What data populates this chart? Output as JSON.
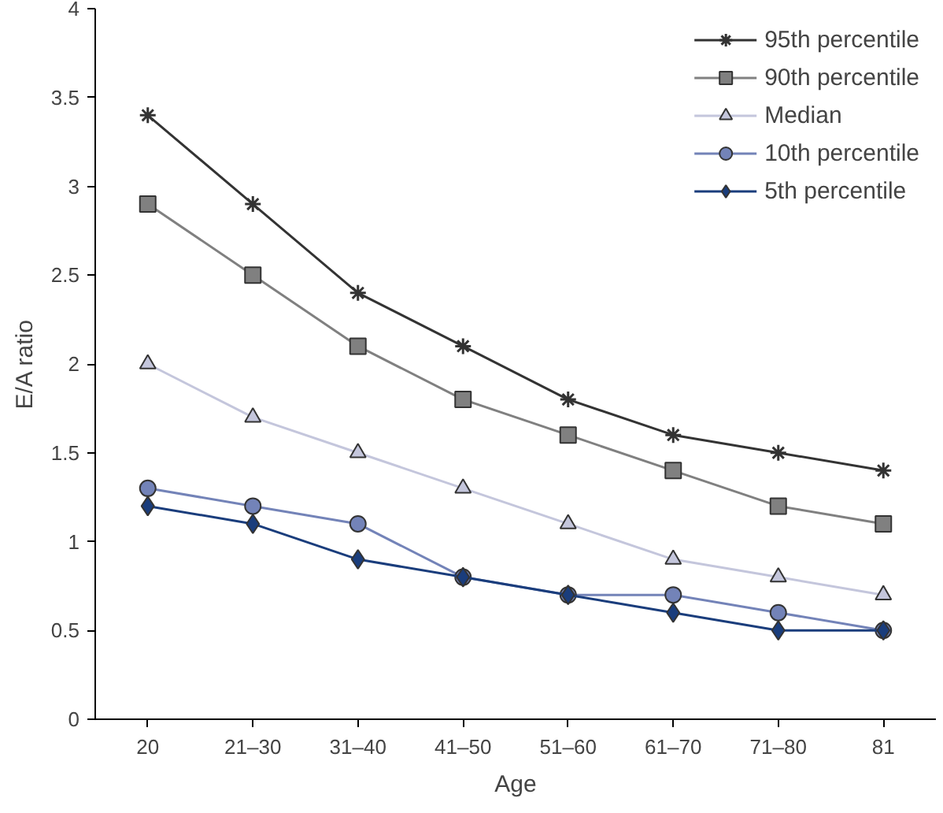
{
  "chart_data": {
    "type": "line",
    "xlabel": "Age",
    "ylabel": "E/A ratio",
    "categories": [
      "20",
      "21–30",
      "31–40",
      "41–50",
      "51–60",
      "61–70",
      "71–80",
      "81"
    ],
    "ylim": [
      0,
      4
    ],
    "yticks": [
      0,
      0.5,
      1,
      1.5,
      2,
      2.5,
      3,
      3.5,
      4
    ],
    "grid": false,
    "legend": "top right",
    "line_style": "solid",
    "series": [
      {
        "name": "95th percentile",
        "color": "#333333",
        "marker": "cross",
        "values": [
          3.4,
          2.9,
          2.4,
          2.1,
          1.8,
          1.6,
          1.5,
          1.4
        ]
      },
      {
        "name": "90th percentile",
        "color": "#808080",
        "marker": "square",
        "values": [
          2.9,
          2.5,
          2.1,
          1.8,
          1.6,
          1.4,
          1.2,
          1.1
        ]
      },
      {
        "name": "Median",
        "color": "#c4c6dc",
        "marker": "triangle",
        "values": [
          2.0,
          1.7,
          1.5,
          1.3,
          1.1,
          0.9,
          0.8,
          0.7
        ]
      },
      {
        "name": "10th percentile",
        "color": "#7383b8",
        "marker": "circle",
        "values": [
          1.3,
          1.2,
          1.1,
          0.8,
          0.7,
          0.7,
          0.6,
          0.5
        ]
      },
      {
        "name": "5th percentile",
        "color": "#1a3d7c",
        "marker": "diamond",
        "values": [
          1.2,
          1.1,
          0.9,
          0.8,
          0.7,
          0.6,
          0.5,
          0.5
        ]
      }
    ]
  }
}
